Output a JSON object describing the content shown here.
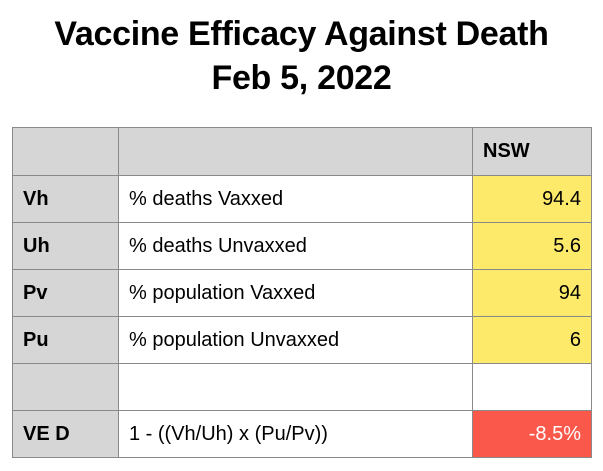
{
  "title": {
    "line1": "Vaccine Efficacy Against Death",
    "line2": "Feb 5, 2022"
  },
  "table": {
    "header": {
      "col1": "",
      "col2": "",
      "region": "NSW"
    },
    "rows": [
      {
        "key": "Vh",
        "desc": "% deaths Vaxxed",
        "value": "94.4"
      },
      {
        "key": "Uh",
        "desc": "% deaths Unvaxxed",
        "value": "5.6"
      },
      {
        "key": "Pv",
        "desc": "% population Vaxxed",
        "value": "94"
      },
      {
        "key": "Pu",
        "desc": "% population Unvaxxed",
        "value": "6"
      },
      {
        "key": "",
        "desc": "",
        "value": ""
      },
      {
        "key": "VE D",
        "desc": "1 - ((Vh/Uh) x (Pu/Pv))",
        "value": "-8.5%"
      }
    ]
  },
  "colors": {
    "header_gray": "#d6d6d6",
    "value_yellow": "#fdea6a",
    "result_red": "#f9584a"
  }
}
